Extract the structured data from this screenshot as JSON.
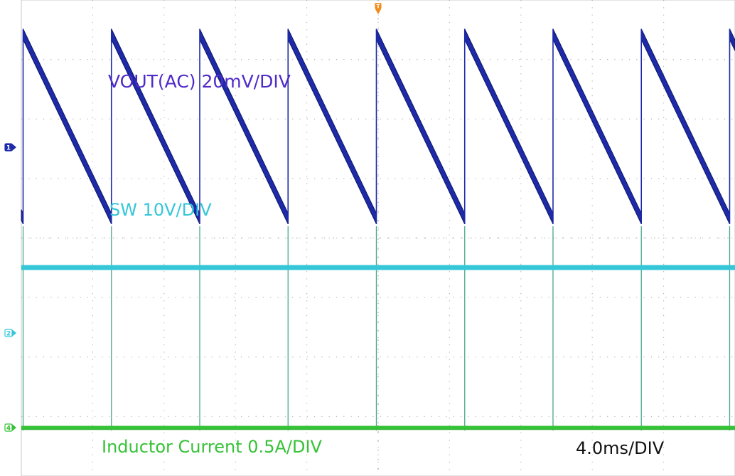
{
  "chart_data": {
    "type": "line",
    "title": "",
    "grid": true,
    "divisions": {
      "horizontal": 10,
      "vertical": 8
    },
    "timebase_label": "4.0ms/DIV",
    "x_unit": "ms",
    "xlim": [
      0,
      40
    ],
    "series": [
      {
        "name": "VOUT(AC) 20mV/DIV",
        "channel": "1",
        "color": "#1e2aa8",
        "label_color": "#4f2bc8",
        "scale_label": "20mV/DIV",
        "volts_per_div": 0.02,
        "waveform": "sawtooth",
        "period_ms": 4.95,
        "first_peak_ms": 0.1,
        "peak_div": 1.9,
        "valley_div": -1.2,
        "peak_mV": 38,
        "valley_mV": -24
      },
      {
        "name": "SW 10V/DIV",
        "channel": "2",
        "color": "#35c6d8",
        "scale_label": "10V/DIV",
        "volts_per_div": 10,
        "waveform": "flat_with_spikes",
        "level_div": 1.1,
        "spike_times_ms": [
          0.1,
          5.05,
          10.0,
          14.95,
          19.9,
          24.85,
          29.8,
          34.75,
          39.7
        ]
      },
      {
        "name": "Inductor Current 0.5A/DIV",
        "channel": "4",
        "color": "#36c236",
        "scale_label": "0.5A/DIV",
        "amps_per_div": 0.5,
        "waveform": "flat",
        "level_div": 0
      }
    ],
    "markers": [
      {
        "name": "trigger",
        "label": "T",
        "color": "#f08a18"
      },
      {
        "name": "ch1-ground",
        "label": "1",
        "color": "#1e2aa8"
      },
      {
        "name": "ch2-ground",
        "label": "2",
        "color": "#35c6d8"
      },
      {
        "name": "ch4-ground",
        "label": "4",
        "color": "#36c236"
      }
    ],
    "annotations": {
      "vout": "VOUT(AC) 20mV/DIV",
      "sw": "SW 10V/DIV",
      "inductor": "Inductor Current 0.5A/DIV",
      "timebase": "4.0ms/DIV"
    }
  }
}
